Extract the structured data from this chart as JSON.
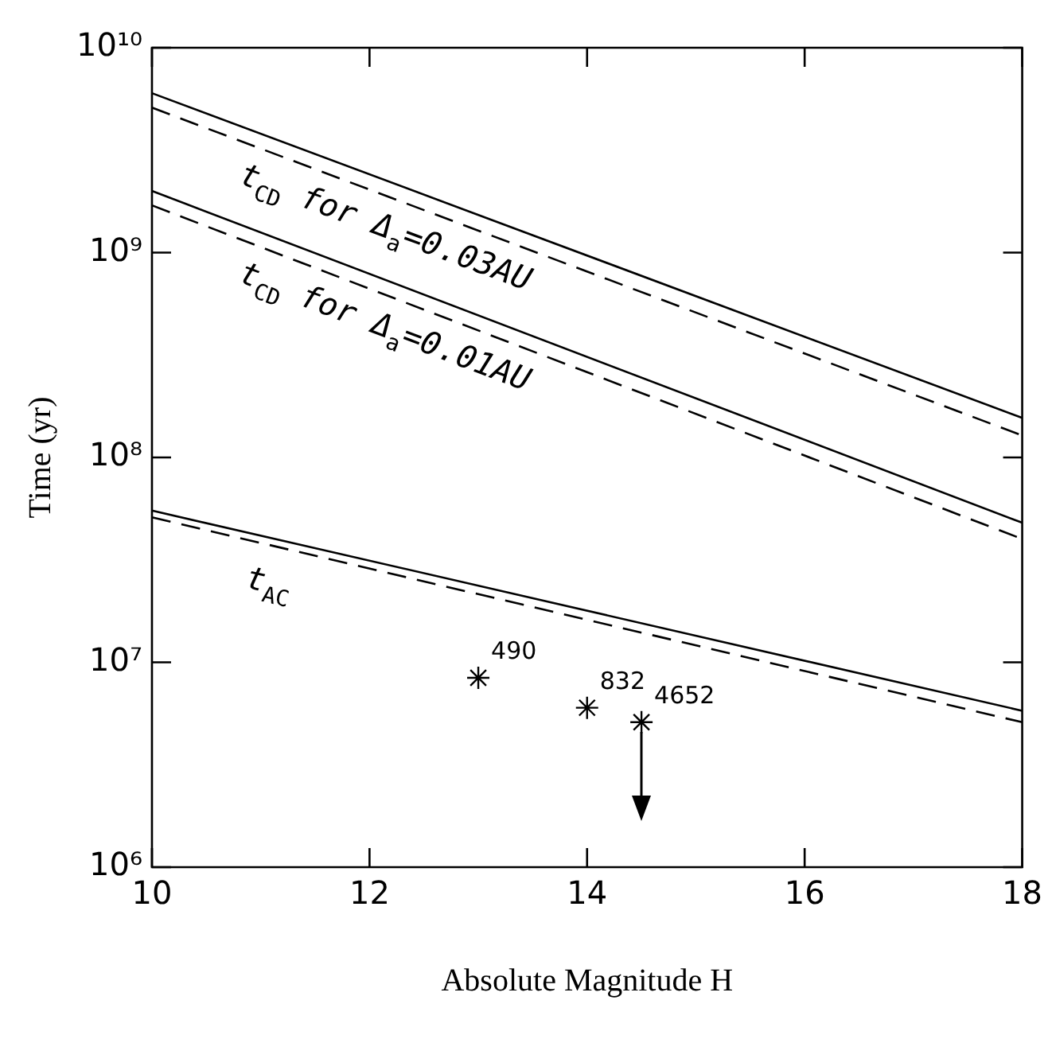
{
  "chart_data": {
    "type": "line",
    "xlabel": "Absolute Magnitude H",
    "ylabel": "Time (yr)",
    "log": "y",
    "grid": false,
    "legend": false,
    "xlim": [
      10,
      18
    ],
    "xticks": [
      10,
      12,
      14,
      16,
      18
    ],
    "ylim": [
      1000000,
      10000000000
    ],
    "yticks": [
      {
        "value": 1000000,
        "label": "10⁶"
      },
      {
        "value": 10000000,
        "label": "10⁷"
      },
      {
        "value": 100000000,
        "label": "10⁸"
      },
      {
        "value": 1000000000,
        "label": "10⁹"
      },
      {
        "value": 10000000000,
        "label": "10¹⁰"
      }
    ],
    "series": [
      {
        "name": "t$_{CD}$ for Δ$_{a}$=0.03AU",
        "line_style": "solid",
        "color": "#000000",
        "x": [
          10,
          18
        ],
        "values": [
          6000000000,
          156000000
        ]
      },
      {
        "line_style": "dashed",
        "color": "#000000",
        "x": [
          10,
          18
        ],
        "values": [
          5100000000,
          128000000
        ]
      },
      {
        "name": "t$_{CD}$ for Δ$_{a}$=0.01AU",
        "line_style": "solid",
        "color": "#000000",
        "x": [
          10,
          18
        ],
        "values": [
          2000000000,
          48000000
        ]
      },
      {
        "line_style": "dashed",
        "color": "#000000",
        "x": [
          10,
          18
        ],
        "values": [
          1700000000,
          40000000
        ]
      },
      {
        "name": "t$_{AC}$",
        "line_style": "solid",
        "color": "#000000",
        "x": [
          10,
          18
        ],
        "values": [
          55000000,
          5800000
        ]
      },
      {
        "line_style": "dashed",
        "color": "#000000",
        "x": [
          10,
          18
        ],
        "values": [
          51000000,
          5100000
        ]
      },
      {
        "type": "scatter",
        "marker": "cross",
        "color": "#000000",
        "x": [
          13,
          14,
          14.5
        ],
        "values": [
          8400000,
          6000000,
          5100000
        ]
      }
    ],
    "annotations": [
      {
        "text": "490",
        "x": 13,
        "y": 8400000
      },
      {
        "text": "832",
        "x": 14,
        "y": 6000000
      },
      {
        "text": "4652",
        "x": 14.5,
        "y": 5100000
      }
    ]
  }
}
